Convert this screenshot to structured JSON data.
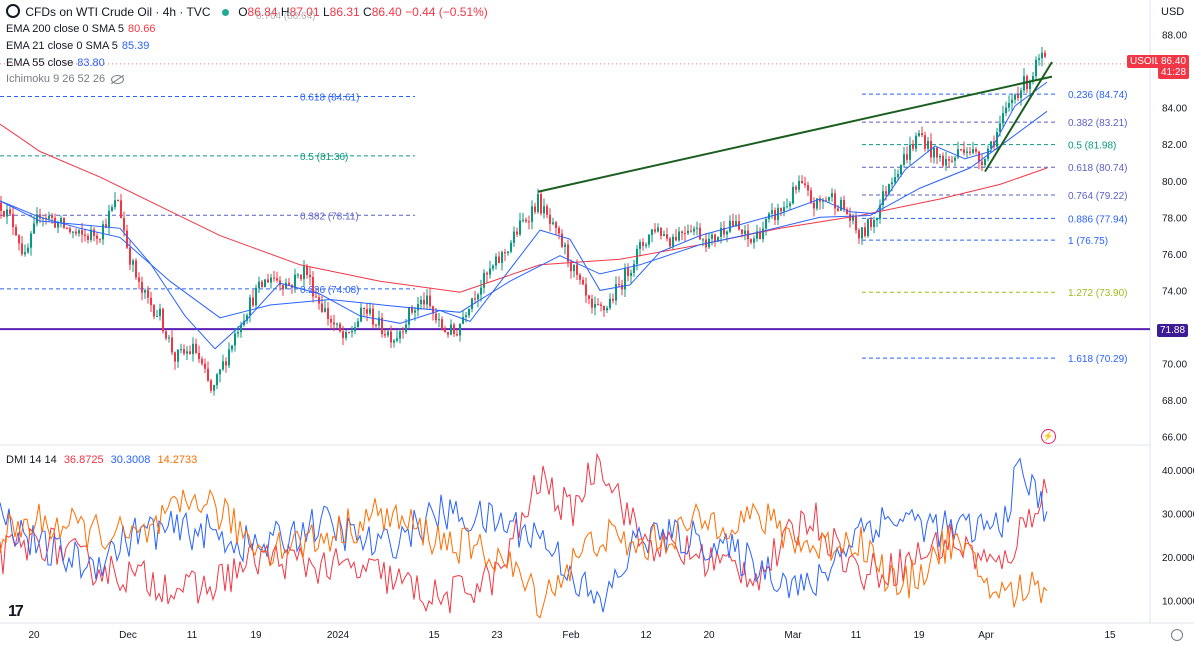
{
  "header": {
    "symbol_title": "CFDs on WTI Crude Oil · 4h · TVC",
    "ohlc": {
      "o": "86.84",
      "h": "87.01",
      "l": "86.31",
      "c": "86.40",
      "chg": "−0.44 (−0.51%)"
    },
    "currency": "USD"
  },
  "indicators": [
    {
      "label": "EMA 200 close 0 SMA 5",
      "value": "80.66",
      "color": "#f23645"
    },
    {
      "label": "EMA 21 close 0 SMA 5",
      "value": "85.39",
      "color": "#2962ff"
    },
    {
      "label": "EMA 55 close",
      "value": "83.80",
      "color": "#2962ff"
    },
    {
      "label": "Ichimoku 9 26 52 26",
      "value": "",
      "color": "#787b86"
    }
  ],
  "dmi": {
    "label": "DMI 14 14",
    "values": [
      "36.8725",
      "30.3008",
      "14.2733"
    ],
    "colors": [
      "#f23645",
      "#2962ff",
      "#ff6d00"
    ]
  },
  "price_tags": {
    "symbol": "USOIL",
    "last_price": "86.40",
    "countdown": "41:28",
    "support": "71.88"
  },
  "top_faded_label": "0.764 (88.64)",
  "tv_logo": "17",
  "chart_data": {
    "type": "candlestick",
    "title": "CFDs on WTI Crude Oil · 4h · TVC",
    "y_axis": {
      "ticks": [
        "88.00",
        "86.00",
        "84.00",
        "82.00",
        "80.00",
        "78.00",
        "76.00",
        "74.00",
        "72.00",
        "70.00",
        "68.00",
        "66.00"
      ],
      "ylim": [
        65.7,
        88.8
      ]
    },
    "x_axis": {
      "ticks": [
        "20",
        "Dec",
        "11",
        "19",
        "2024",
        "15",
        "23",
        "Feb",
        "12",
        "20",
        "Mar",
        "11",
        "19",
        "Apr",
        "15"
      ]
    },
    "price_path": [
      [
        0,
        78.8
      ],
      [
        15,
        77.5
      ],
      [
        25,
        75.7
      ],
      [
        40,
        78.3
      ],
      [
        60,
        77.6
      ],
      [
        80,
        76.9
      ],
      [
        100,
        77.2
      ],
      [
        118,
        79.0
      ],
      [
        128,
        76.2
      ],
      [
        140,
        74.0
      ],
      [
        160,
        72.6
      ],
      [
        175,
        70.3
      ],
      [
        195,
        70.8
      ],
      [
        212,
        68.3
      ],
      [
        220,
        69.5
      ],
      [
        240,
        72.3
      ],
      [
        255,
        73.8
      ],
      [
        270,
        74.8
      ],
      [
        290,
        74.3
      ],
      [
        305,
        75.2
      ],
      [
        315,
        73.8
      ],
      [
        330,
        72.4
      ],
      [
        345,
        71.2
      ],
      [
        365,
        73.0
      ],
      [
        380,
        72.0
      ],
      [
        395,
        71.4
      ],
      [
        410,
        72.8
      ],
      [
        425,
        73.5
      ],
      [
        440,
        72.0
      ],
      [
        455,
        71.6
      ],
      [
        470,
        73.5
      ],
      [
        490,
        75.0
      ],
      [
        505,
        76.1
      ],
      [
        520,
        77.5
      ],
      [
        538,
        78.9
      ],
      [
        550,
        77.6
      ],
      [
        565,
        76.2
      ],
      [
        578,
        74.5
      ],
      [
        592,
        72.8
      ],
      [
        605,
        73.0
      ],
      [
        620,
        74.3
      ],
      [
        640,
        76.3
      ],
      [
        655,
        77.5
      ],
      [
        670,
        76.8
      ],
      [
        690,
        77.6
      ],
      [
        710,
        76.6
      ],
      [
        730,
        77.8
      ],
      [
        750,
        76.6
      ],
      [
        770,
        77.9
      ],
      [
        785,
        78.6
      ],
      [
        800,
        79.8
      ],
      [
        815,
        78.6
      ],
      [
        830,
        79.2
      ],
      [
        845,
        78.4
      ],
      [
        860,
        76.9
      ],
      [
        875,
        78.0
      ],
      [
        890,
        80.1
      ],
      [
        905,
        81.3
      ],
      [
        920,
        82.6
      ],
      [
        935,
        81.3
      ],
      [
        950,
        81.0
      ],
      [
        965,
        82.0
      ],
      [
        980,
        81.1
      ],
      [
        995,
        82.4
      ],
      [
        1005,
        83.6
      ],
      [
        1015,
        84.8
      ],
      [
        1030,
        85.6
      ],
      [
        1040,
        86.7
      ],
      [
        1047,
        86.4
      ]
    ],
    "series": [
      {
        "name": "EMA 200",
        "color": "#f23645",
        "points": [
          [
            0,
            83.1
          ],
          [
            40,
            81.6
          ],
          [
            100,
            80.2
          ],
          [
            160,
            78.6
          ],
          [
            220,
            77.0
          ],
          [
            300,
            75.4
          ],
          [
            380,
            74.5
          ],
          [
            460,
            73.9
          ],
          [
            540,
            75.4
          ],
          [
            620,
            75.7
          ],
          [
            700,
            76.5
          ],
          [
            780,
            77.4
          ],
          [
            860,
            78.1
          ],
          [
            940,
            79.0
          ],
          [
            1000,
            79.8
          ],
          [
            1047,
            80.7
          ]
        ]
      },
      {
        "name": "EMA 55",
        "color": "#2962ff",
        "points": [
          [
            0,
            78.9
          ],
          [
            40,
            78.0
          ],
          [
            80,
            77.4
          ],
          [
            120,
            76.9
          ],
          [
            170,
            74.5
          ],
          [
            220,
            72.5
          ],
          [
            270,
            73.2
          ],
          [
            330,
            73.5
          ],
          [
            400,
            73.1
          ],
          [
            460,
            72.8
          ],
          [
            510,
            74.5
          ],
          [
            560,
            75.9
          ],
          [
            600,
            74.9
          ],
          [
            640,
            75.4
          ],
          [
            700,
            76.5
          ],
          [
            760,
            77.2
          ],
          [
            820,
            78.0
          ],
          [
            870,
            78.1
          ],
          [
            920,
            79.6
          ],
          [
            970,
            80.7
          ],
          [
            1010,
            82.3
          ],
          [
            1047,
            83.8
          ]
        ]
      },
      {
        "name": "EMA 21",
        "color": "#2962ff",
        "points": [
          [
            0,
            78.9
          ],
          [
            40,
            77.8
          ],
          [
            80,
            77.6
          ],
          [
            120,
            77.4
          ],
          [
            150,
            75.5
          ],
          [
            185,
            72.6
          ],
          [
            215,
            70.8
          ],
          [
            245,
            72.3
          ],
          [
            280,
            74.4
          ],
          [
            320,
            73.8
          ],
          [
            360,
            72.6
          ],
          [
            400,
            72.2
          ],
          [
            440,
            72.9
          ],
          [
            470,
            72.3
          ],
          [
            505,
            74.8
          ],
          [
            540,
            77.3
          ],
          [
            570,
            76.8
          ],
          [
            600,
            74.0
          ],
          [
            630,
            74.3
          ],
          [
            660,
            76.1
          ],
          [
            700,
            77.0
          ],
          [
            740,
            77.6
          ],
          [
            780,
            78.2
          ],
          [
            820,
            79.0
          ],
          [
            850,
            78.3
          ],
          [
            875,
            78.2
          ],
          [
            905,
            80.6
          ],
          [
            935,
            81.9
          ],
          [
            965,
            81.2
          ],
          [
            990,
            81.6
          ],
          [
            1015,
            84.1
          ],
          [
            1047,
            85.4
          ]
        ]
      }
    ],
    "fib_levels": [
      {
        "label": "0.764 (88.64)",
        "value": 88.64,
        "color": "#9598a1",
        "segment": "right"
      },
      {
        "label": "0.618 (84.61)",
        "value": 84.61,
        "color": "#2962ff",
        "segment": "left"
      },
      {
        "label": "0.5 (81.36)",
        "value": 81.36,
        "color": "#089981",
        "segment": "left"
      },
      {
        "label": "0.382 (78.11)",
        "value": 78.11,
        "color": "#5b5fc7",
        "segment": "left"
      },
      {
        "label": "0.236 (74.08)",
        "value": 74.08,
        "color": "#2962ff",
        "segment": "left"
      },
      {
        "label": "0.236 (84.74)",
        "value": 84.74,
        "color": "#2962ff",
        "segment": "right"
      },
      {
        "label": "0.382 (83.21)",
        "value": 83.21,
        "color": "#5b5fc7",
        "segment": "right"
      },
      {
        "label": "0.5 (81.98)",
        "value": 81.98,
        "color": "#089981",
        "segment": "right"
      },
      {
        "label": "0.618 (80.74)",
        "value": 80.74,
        "color": "#5b5fc7",
        "segment": "right"
      },
      {
        "label": "0.764 (79.22)",
        "value": 79.22,
        "color": "#5b5fc7",
        "segment": "right"
      },
      {
        "label": "0.886 (77.94)",
        "value": 77.94,
        "color": "#2962ff",
        "segment": "right"
      },
      {
        "label": "1 (76.75)",
        "value": 76.75,
        "color": "#2962ff",
        "segment": "right"
      },
      {
        "label": "1.272 (73.90)",
        "value": 73.9,
        "color": "#9bbf1a",
        "segment": "right"
      },
      {
        "label": "1.618 (70.29)",
        "value": 70.29,
        "color": "#2962ff",
        "segment": "right"
      }
    ],
    "support_line": {
      "value": 71.88,
      "color": "#5b21b6"
    },
    "trendlines": [
      {
        "from": [
          538,
          79.4
        ],
        "to": [
          1052,
          85.7
        ],
        "color": "#1b5e20"
      },
      {
        "from": [
          985,
          80.5
        ],
        "to": [
          1052,
          86.5
        ],
        "color": "#1b5e20"
      }
    ],
    "dmi_chart": {
      "ylim": [
        5,
        45
      ],
      "ticks": [
        "40.0000",
        "30.0000",
        "20.0000",
        "10.0000"
      ]
    }
  }
}
